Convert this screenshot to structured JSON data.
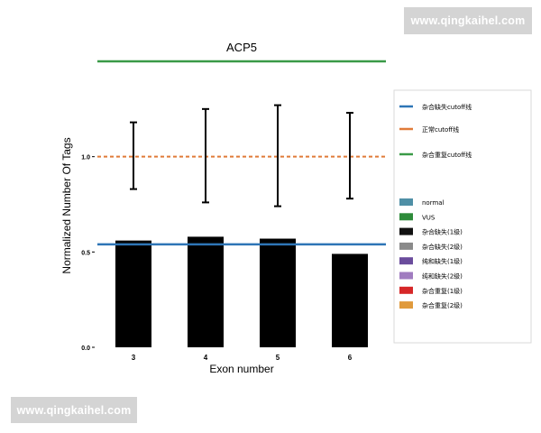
{
  "watermark": {
    "top": "www.qingkaihel.com",
    "bottom": "www.qingkaihel.com"
  },
  "chart_data": {
    "type": "bar",
    "title": "ACP5",
    "xlabel": "Exon number",
    "ylabel": "Normalized Number Of Tags",
    "categories": [
      "3",
      "4",
      "5",
      "6"
    ],
    "ylim": [
      0,
      1.5
    ],
    "yticks": [
      0.0,
      0.5,
      1.0
    ],
    "ytick_labels": [
      "0.0",
      "0.5",
      "1.0"
    ],
    "series": [
      {
        "values": [
          0.56,
          0.58,
          0.57,
          0.49
        ],
        "color": "#000000"
      }
    ],
    "error_bars": [
      {
        "low": 0.83,
        "high": 1.18
      },
      {
        "low": 0.76,
        "high": 1.25
      },
      {
        "low": 0.74,
        "high": 1.27
      },
      {
        "low": 0.78,
        "high": 1.23
      }
    ],
    "reference_lines": [
      {
        "name": "杂合缺失cutoff线",
        "value": 0.54,
        "color": "#2e75b6",
        "style": "solid"
      },
      {
        "name": "正常cutoff线",
        "value": 1.0,
        "color": "#e07b39",
        "style": "dashed"
      },
      {
        "name": "杂合重复cutoff线",
        "value": 1.5,
        "color": "#3a9a47",
        "style": "solid"
      }
    ],
    "legend": {
      "placement": "right",
      "lines": [
        {
          "label": "杂合缺失cutoff线",
          "color": "#2e75b6"
        },
        {
          "label": "正常cutoff线",
          "color": "#e07b39"
        },
        {
          "label": "杂合重复cutoff线",
          "color": "#3a9a47"
        }
      ],
      "patches": [
        {
          "label": "normal",
          "color": "#4f8fa6"
        },
        {
          "label": "VUS",
          "color": "#2e8b3a"
        },
        {
          "label": "杂合缺失(1级)",
          "color": "#111111"
        },
        {
          "label": "杂合缺失(2级)",
          "color": "#8a8a8a"
        },
        {
          "label": "纯和缺失(1级)",
          "color": "#6a4c9c"
        },
        {
          "label": "纯和缺失(2级)",
          "color": "#a07cc0"
        },
        {
          "label": "杂合重复(1级)",
          "color": "#d62728"
        },
        {
          "label": "杂合重复(2级)",
          "color": "#e09a3c"
        }
      ]
    },
    "grid": false
  }
}
